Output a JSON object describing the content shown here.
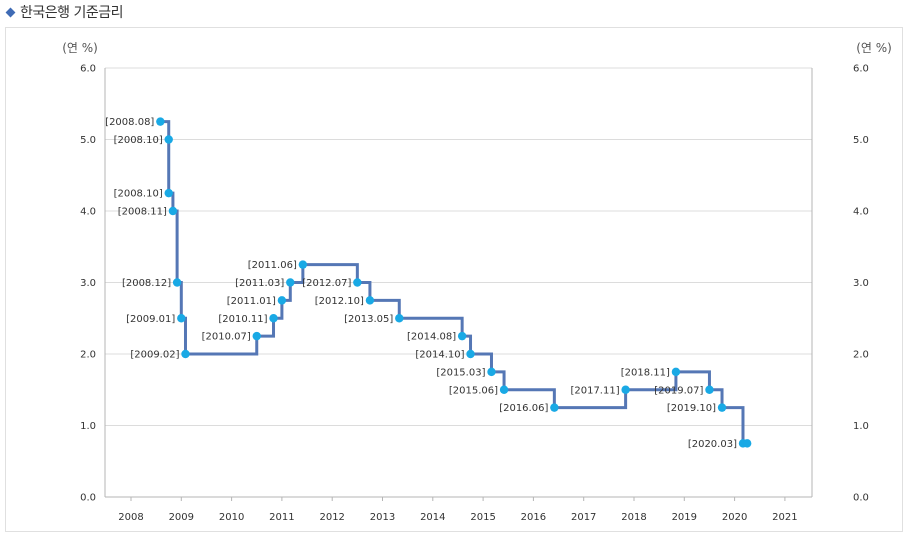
{
  "header": {
    "title": "한국은행 기준금리"
  },
  "chart_data": {
    "type": "line",
    "title": "한국은행 기준금리",
    "ylabel_left": "(연 %)",
    "ylabel_right": "(연 %)",
    "ylim": [
      0,
      6
    ],
    "y_ticks": [
      "0.0",
      "1.0",
      "2.0",
      "3.0",
      "4.0",
      "5.0",
      "6.0"
    ],
    "x_ticks": [
      "2008",
      "2009",
      "2010",
      "2011",
      "2012",
      "2013",
      "2014",
      "2015",
      "2016",
      "2017",
      "2018",
      "2019",
      "2020",
      "2021"
    ],
    "grid": "horizontal",
    "line_color": "#5577b5",
    "point_color": "#19a9e5",
    "points": [
      {
        "label": "[2008.08]",
        "x": "2008-08",
        "y": 5.25
      },
      {
        "label": "[2008.10]",
        "x": "2008-10",
        "y": 5.0
      },
      {
        "label": "[2008.10]",
        "x": "2008-10",
        "y": 4.25
      },
      {
        "label": "[2008.11]",
        "x": "2008-11",
        "y": 4.0
      },
      {
        "label": "[2008.12]",
        "x": "2008-12",
        "y": 3.0
      },
      {
        "label": "[2009.01]",
        "x": "2009-01",
        "y": 2.5
      },
      {
        "label": "[2009.02]",
        "x": "2009-02",
        "y": 2.0
      },
      {
        "label": "[2010.07]",
        "x": "2010-07",
        "y": 2.25
      },
      {
        "label": "[2010.11]",
        "x": "2010-11",
        "y": 2.5
      },
      {
        "label": "[2011.01]",
        "x": "2011-01",
        "y": 2.75
      },
      {
        "label": "[2011.03]",
        "x": "2011-03",
        "y": 3.0
      },
      {
        "label": "[2011.06]",
        "x": "2011-06",
        "y": 3.25
      },
      {
        "label": "[2012.07]",
        "x": "2012-07",
        "y": 3.0
      },
      {
        "label": "[2012.10]",
        "x": "2012-10",
        "y": 2.75
      },
      {
        "label": "[2013.05]",
        "x": "2013-05",
        "y": 2.5
      },
      {
        "label": "[2014.08]",
        "x": "2014-08",
        "y": 2.25
      },
      {
        "label": "[2014.10]",
        "x": "2014-10",
        "y": 2.0
      },
      {
        "label": "[2015.03]",
        "x": "2015-03",
        "y": 1.75
      },
      {
        "label": "[2015.06]",
        "x": "2015-06",
        "y": 1.5
      },
      {
        "label": "[2016.06]",
        "x": "2016-06",
        "y": 1.25
      },
      {
        "label": "[2017.11]",
        "x": "2017-11",
        "y": 1.5
      },
      {
        "label": "[2018.11]",
        "x": "2018-11",
        "y": 1.75
      },
      {
        "label": "[2019.07]",
        "x": "2019-07",
        "y": 1.5
      },
      {
        "label": "[2019.10]",
        "x": "2019-10",
        "y": 1.25
      },
      {
        "label": "[2020.03]",
        "x": "2020-03",
        "y": 0.75
      }
    ],
    "line_end": {
      "x": "2020-04",
      "y": 0.75
    }
  }
}
